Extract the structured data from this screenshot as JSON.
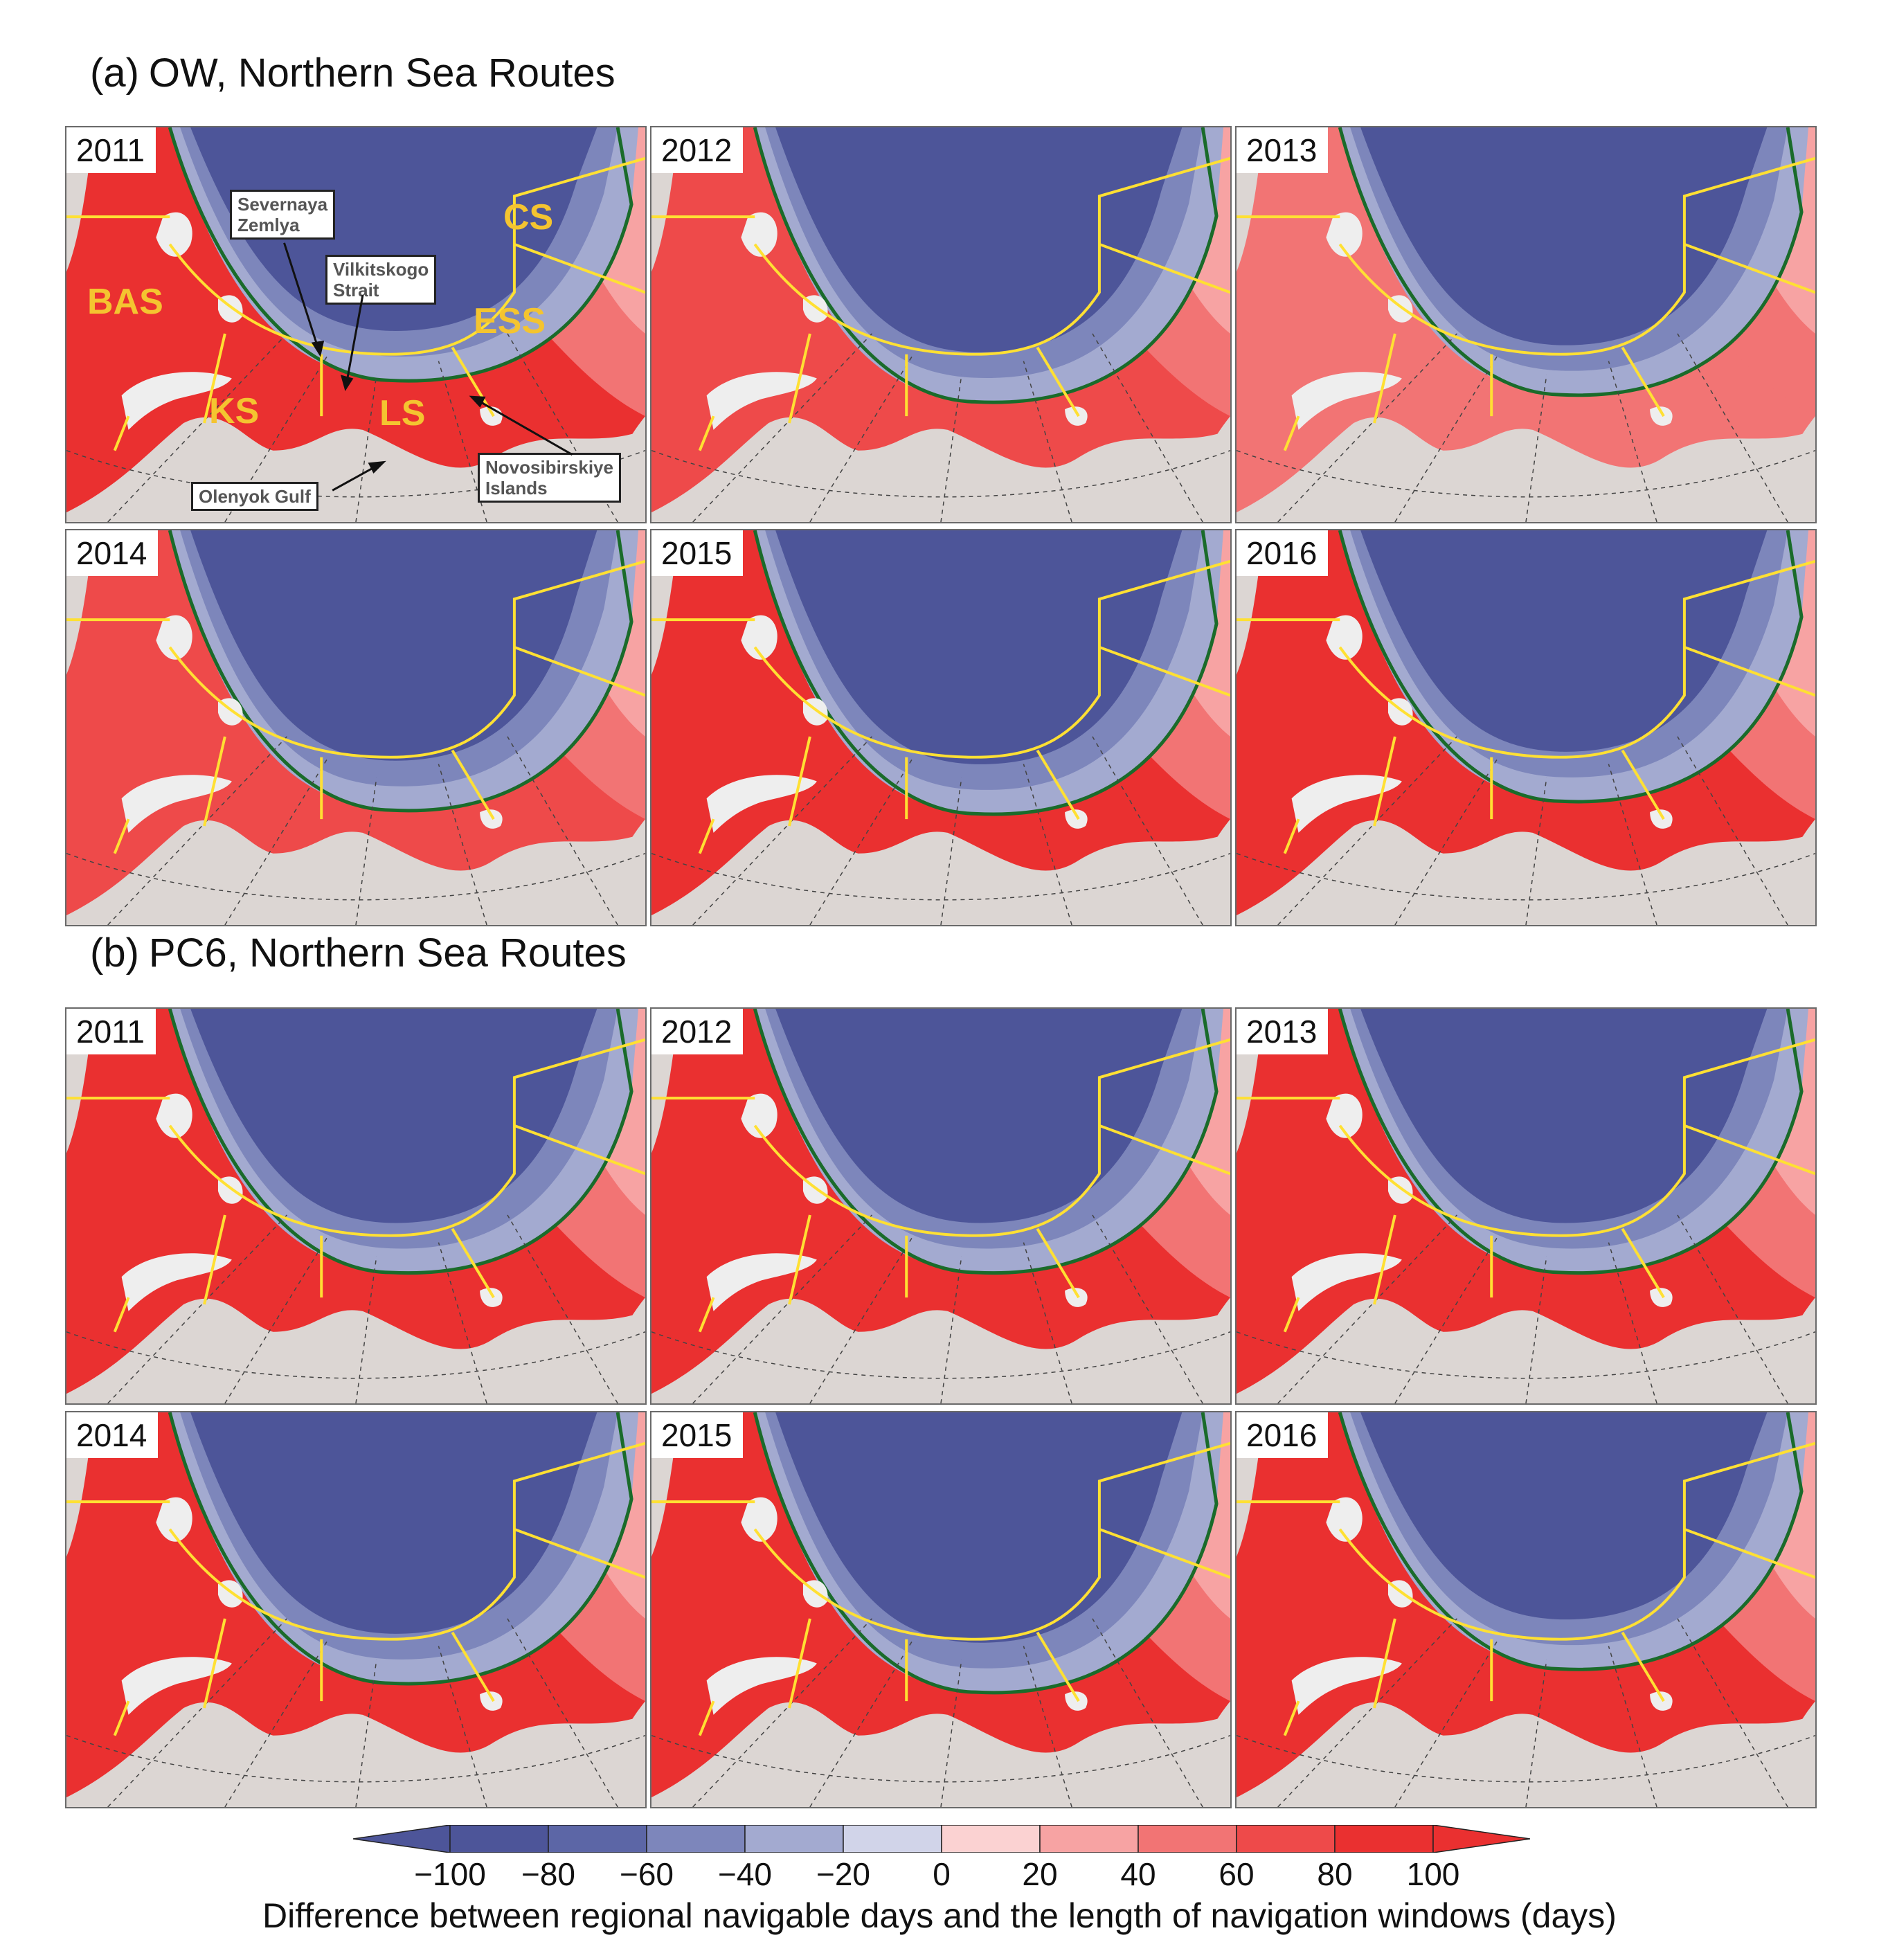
{
  "figure": {
    "section_a": {
      "label": "(a)",
      "title": "OW, Northern Sea Routes"
    },
    "section_b": {
      "label": "(b)",
      "title": "PC6, Northern Sea Routes"
    },
    "panels_a": [
      {
        "year": "2011",
        "blue_extent": 0.8,
        "shade": 0.95
      },
      {
        "year": "2012",
        "blue_extent": 0.92,
        "shade": 0.7
      },
      {
        "year": "2013",
        "blue_extent": 0.88,
        "shade": 0.4
      },
      {
        "year": "2014",
        "blue_extent": 0.95,
        "shade": 0.8
      },
      {
        "year": "2015",
        "blue_extent": 0.97,
        "shade": 1.0
      },
      {
        "year": "2016",
        "blue_extent": 0.9,
        "shade": 0.9
      }
    ],
    "panels_b": [
      {
        "year": "2011",
        "blue_extent": 0.86,
        "shade": 0.9
      },
      {
        "year": "2012",
        "blue_extent": 0.86,
        "shade": 1.0
      },
      {
        "year": "2013",
        "blue_extent": 0.86,
        "shade": 1.0
      },
      {
        "year": "2014",
        "blue_extent": 0.9,
        "shade": 1.0
      },
      {
        "year": "2015",
        "blue_extent": 0.95,
        "shade": 1.0
      },
      {
        "year": "2016",
        "blue_extent": 0.82,
        "shade": 0.95
      }
    ],
    "regions": [
      {
        "id": "bas",
        "label": "BAS"
      },
      {
        "id": "ks",
        "label": "KS"
      },
      {
        "id": "ls",
        "label": "LS"
      },
      {
        "id": "ess",
        "label": "ESS"
      },
      {
        "id": "cs",
        "label": "CS"
      }
    ],
    "callouts": [
      {
        "id": "severnaya",
        "lines": [
          "Severnaya",
          "Zemlya"
        ]
      },
      {
        "id": "vilkitskogo",
        "lines": [
          "Vilkitskogo",
          "Strait"
        ]
      },
      {
        "id": "olenyok",
        "lines": [
          "Olenyok Gulf"
        ]
      },
      {
        "id": "novosibirskiye",
        "lines": [
          "Novosibirskiye",
          "Islands"
        ]
      }
    ],
    "colorbar": {
      "title": "Difference between regional navigable days and the length of navigation windows (days)",
      "tick_labels": [
        "−100",
        "−80",
        "−60",
        "−40",
        "−20",
        "0",
        "20",
        "40",
        "60",
        "80",
        "100"
      ],
      "colors": [
        "#4d5599",
        "#5c66a6",
        "#7d86bb",
        "#a3aad0",
        "#d1d4e9",
        "#fbd2d2",
        "#f7a3a3",
        "#f27474",
        "#ee4a4a",
        "#ea3030"
      ],
      "under_color": "#4d5599",
      "over_color": "#ea3030"
    },
    "colors": {
      "land": "#dcd6d3",
      "ice_coast": "#f0f0f0",
      "route_line": "#ffe033",
      "contour_line": "#1a6b2a",
      "graticule": "#444444"
    }
  }
}
